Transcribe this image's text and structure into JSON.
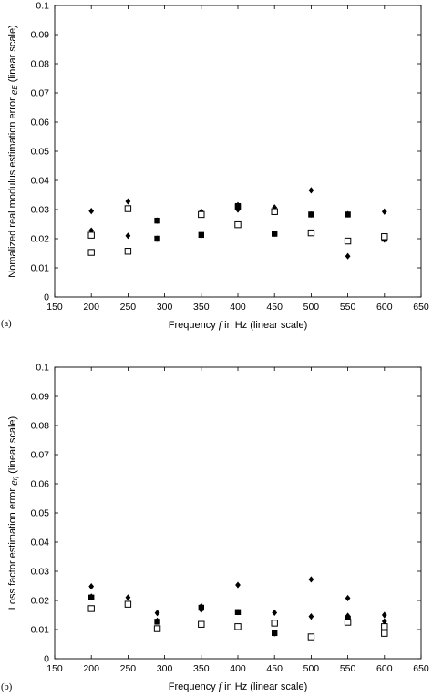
{
  "chart_data": [
    {
      "type": "scatter",
      "panel_label": "(a)",
      "xlabel_parts": [
        "Frequency ",
        "f",
        " in Hz (linear scale)"
      ],
      "ylabel_parts": [
        "Nomalized real modulus estimation error ",
        "e",
        "E",
        " (linear scale)"
      ],
      "xlim": [
        150,
        650
      ],
      "ylim": [
        0,
        0.1
      ],
      "xticks": [
        "150",
        "200",
        "250",
        "300",
        "350",
        "400",
        "450",
        "500",
        "550",
        "600",
        "650"
      ],
      "yticks": [
        "0",
        "0.01",
        "0.02",
        "0.03",
        "0.04",
        "0.05",
        "0.06",
        "0.07",
        "0.08",
        "0.09",
        "0.1"
      ],
      "grid": false,
      "series": [
        {
          "marker": "diamond",
          "x": [
            200,
            200,
            200,
            250,
            250,
            290,
            290,
            350,
            350,
            400,
            400,
            450,
            450,
            500,
            500,
            550,
            550,
            600,
            600
          ],
          "y": [
            0.0295,
            0.0228,
            0.0218,
            0.0328,
            0.021,
            0.02,
            0.0262,
            0.0293,
            0.0212,
            0.0315,
            0.03,
            0.0307,
            0.0217,
            0.0366,
            0.0283,
            0.0284,
            0.014,
            0.0293,
            0.0197
          ]
        },
        {
          "marker": "filled-square",
          "x": [
            290,
            290,
            350,
            400,
            400,
            450,
            500,
            550,
            600
          ],
          "y": [
            0.0262,
            0.02,
            0.0213,
            0.0312,
            0.0308,
            0.0217,
            0.0283,
            0.0283,
            0.02
          ]
        },
        {
          "marker": "open-square",
          "x": [
            200,
            200,
            250,
            250,
            350,
            400,
            450,
            500,
            550,
            600
          ],
          "y": [
            0.0212,
            0.0153,
            0.0303,
            0.0157,
            0.0283,
            0.0248,
            0.0293,
            0.022,
            0.0192,
            0.0207
          ]
        }
      ]
    },
    {
      "type": "scatter",
      "panel_label": "(b)",
      "xlabel_parts": [
        "Frequency ",
        "f",
        " in Hz (linear scale)"
      ],
      "ylabel_parts": [
        "Loss factor estimation error ",
        "e",
        "η",
        " (linear scale)"
      ],
      "xlim": [
        150,
        650
      ],
      "ylim": [
        0,
        0.1
      ],
      "xticks": [
        "150",
        "200",
        "250",
        "300",
        "350",
        "400",
        "450",
        "500",
        "550",
        "600",
        "650"
      ],
      "yticks": [
        "0",
        "0.01",
        "0.02",
        "0.03",
        "0.04",
        "0.05",
        "0.06",
        "0.07",
        "0.08",
        "0.09",
        "0.1"
      ],
      "grid": false,
      "series": [
        {
          "marker": "diamond",
          "x": [
            200,
            200,
            250,
            290,
            290,
            350,
            350,
            400,
            400,
            450,
            450,
            500,
            500,
            550,
            550,
            600,
            600
          ],
          "y": [
            0.0248,
            0.0213,
            0.021,
            0.0157,
            0.013,
            0.018,
            0.0168,
            0.0253,
            0.016,
            0.0158,
            0.0087,
            0.0272,
            0.0145,
            0.0208,
            0.0147,
            0.015,
            0.0128
          ]
        },
        {
          "marker": "filled-square",
          "x": [
            200,
            290,
            350,
            400,
            450,
            550
          ],
          "y": [
            0.021,
            0.0127,
            0.0175,
            0.016,
            0.0088,
            0.0137
          ]
        },
        {
          "marker": "open-square",
          "x": [
            200,
            250,
            290,
            350,
            400,
            450,
            500,
            550,
            600,
            600
          ],
          "y": [
            0.0172,
            0.0187,
            0.0103,
            0.0118,
            0.011,
            0.0122,
            0.0075,
            0.0125,
            0.011,
            0.0087
          ]
        }
      ]
    }
  ]
}
